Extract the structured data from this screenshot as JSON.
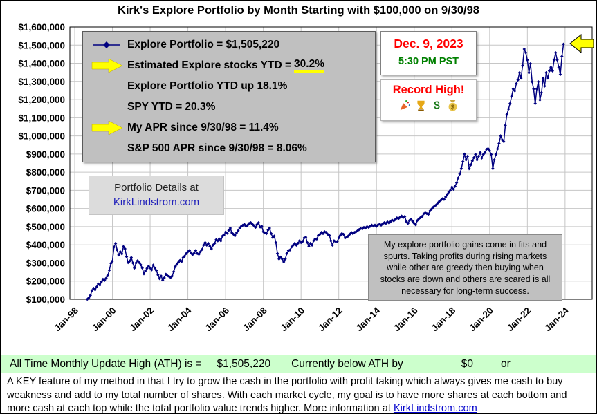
{
  "title": "Kirk's Explore Portfolio by Month Starting with $100,000 on 9/30/98",
  "legend": {
    "rows": [
      {
        "icon": "series-line-marker",
        "text": "Explore Portfolio  =  $1,505,220"
      },
      {
        "icon": "yellow-arrow-right",
        "prefix": "Estimated Explore stocks YTD = ",
        "highlight": "30.2%"
      },
      {
        "text": "Explore Portfolio YTD up 18.1%"
      },
      {
        "text": "SPY YTD =  20.3%"
      },
      {
        "icon": "yellow-arrow-right",
        "text": "My APR since 9/30/98 =  11.4%"
      },
      {
        "text": "S&P 500 APR since 9/30/98 =  8.06%"
      }
    ]
  },
  "date_box": {
    "date": "Dec. 9, 2023",
    "time": "5:30 PM PST"
  },
  "record_box": {
    "label": "Record High!",
    "icons": [
      "party-popper-icon",
      "trophy-icon",
      "dollar-icon",
      "money-bag-icon"
    ]
  },
  "details_box": {
    "line1": "Portfolio Details at",
    "line2": "KirkLindstrom.com"
  },
  "commentary": "My explore portfolio gains come in fits and spurts. Taking profits during rising markets while other are greedy then buying when stocks are down and others are scared is all necessary for long-term success.",
  "ath_bar": {
    "label": "All Time Monthly Update High (ATH) is =",
    "value": "$1,505,220",
    "below_label": "Currently below ATH by",
    "below_value": "$0",
    "suffix": "or"
  },
  "footer": {
    "text": "A KEY feature of my method in that I try to grow the cash in the portfolio with profit taking which always gives me cash to buy weakness and add to my total number of shares.  With each market cycle, my goal is to have more shares at each bottom and more cash at each top while the total portfolio value trends higher.   More information at ",
    "link": "KirkLindstrom.com"
  },
  "colors": {
    "series_line": "#000080",
    "date_red": "#ff0000",
    "time_green": "#008000",
    "record_red": "#ff0000",
    "ath_bar_green": "#ccffcc",
    "legend_gray": "#c0c0c0",
    "highlight_yellow": "#ffff00",
    "link_blue": "#0000cc"
  },
  "chart_data": {
    "type": "line",
    "title": "Kirk's Explore Portfolio by Month Starting with $100,000 on 9/30/98",
    "xlabel": "",
    "ylabel": "",
    "ylim": [
      100000,
      1600000
    ],
    "y_tick_step": 100000,
    "grid": true,
    "x_tick_labels": [
      "Jan-98",
      "Jan-00",
      "Jan-02",
      "Jan-04",
      "Jan-06",
      "Jan-08",
      "Jan-10",
      "Jan-12",
      "Jan-14",
      "Jan-16",
      "Jan-18",
      "Jan-20",
      "Jan-22",
      "Jan-24"
    ],
    "y_tick_labels": [
      "$1,600,000",
      "$1,500,000",
      "$1,400,000",
      "$1,300,000",
      "$1,200,000",
      "$1,100,000",
      "$1,000,000",
      "$900,000",
      "$800,000",
      "$700,000",
      "$600,000",
      "$500,000",
      "$400,000",
      "$300,000",
      "$200,000",
      "$100,000"
    ],
    "series": [
      {
        "name": "Explore Portfolio",
        "color": "#000080",
        "marker": "diamond",
        "start_month": "1998-09",
        "end_month": "2023-12",
        "units": "USD thousands (estimated monthly values read from chart)",
        "final_value_dollars": 1505220,
        "monthly_values_thousands": [
          100,
          108,
          122,
          148,
          160,
          152,
          168,
          184,
          178,
          196,
          210,
          204,
          216,
          230,
          260,
          298,
          310,
          388,
          408,
          372,
          344,
          362,
          350,
          390,
          378,
          334,
          302,
          310,
          330,
          300,
          272,
          300,
          312,
          302,
          290,
          272,
          240,
          256,
          270,
          282,
          272,
          262,
          288,
          272,
          258,
          234,
          214,
          228,
          206,
          218,
          238,
          230,
          226,
          220,
          228,
          252,
          280,
          292,
          304,
          314,
          308,
          330,
          338,
          352,
          362,
          368,
          356,
          346,
          354,
          368,
          352,
          348,
          362,
          374,
          398,
          412,
          398,
          408,
          392,
          378,
          398,
          408,
          428,
          422,
          432,
          422,
          448,
          454,
          470,
          464,
          480,
          492,
          466,
          458,
          450,
          466,
          478,
          492,
          502,
          508,
          512,
          502,
          508,
          518,
          522,
          514,
          506,
          496,
          512,
          522,
          498,
          502,
          472,
          466,
          462,
          482,
          492,
          462,
          440,
          448,
          412,
          352,
          322,
          332,
          322,
          306,
          322,
          352,
          368,
          372,
          388,
          398,
          408,
          398,
          408,
          422,
          412,
          418,
          438,
          442,
          412,
          392,
          408,
          398,
          422,
          432,
          432,
          452,
          458,
          468,
          462,
          472,
          468,
          458,
          452,
          422,
          398,
          422,
          418,
          418,
          438,
          452,
          462,
          458,
          438,
          442,
          448,
          458,
          468,
          462,
          468,
          472,
          478,
          484,
          490,
          488,
          496,
          492,
          500,
          496,
          502,
          508,
          504,
          508,
          502,
          510,
          514,
          508,
          516,
          522,
          518,
          526,
          520,
          528,
          536,
          532,
          540,
          548,
          544,
          552,
          558,
          550,
          556,
          528,
          518,
          534,
          540,
          530,
          518,
          510,
          534,
          544,
          550,
          556,
          570,
          576,
          572,
          568,
          586,
          596,
          606,
          614,
          620,
          630,
          640,
          646,
          654,
          650,
          664,
          678,
          690,
          700,
          718,
          706,
          722,
          742,
          768,
          790,
          820,
          858,
          900,
          868,
          888,
          820,
          840,
          862,
          880,
          898,
          868,
          888,
          908,
          878,
          898,
          908,
          926,
          930,
          918,
          898,
          820,
          868,
          898,
          928,
          958,
          1000,
          978,
          968,
          1058,
          1118,
          1148,
          1178,
          1218,
          1258,
          1248,
          1288,
          1308,
          1348,
          1318,
          1388,
          1478,
          1458,
          1418,
          1348,
          1398,
          1298,
          1258,
          1178,
          1258,
          1298,
          1198,
          1238,
          1318,
          1274,
          1348,
          1318,
          1358,
          1378,
          1358,
          1418,
          1458,
          1418,
          1378,
          1338,
          1438,
          1505.22
        ]
      }
    ],
    "legend_position": "top-left box",
    "annotations": [
      "Explore Portfolio  =  $1,505,220",
      "Estimated Explore stocks YTD =  30.2%",
      "Explore Portfolio YTD up 18.1%",
      "SPY YTD =  20.3%",
      "My APR since 9/30/98 =  11.4%",
      "S&P 500 APR since 9/30/98 =  8.06%",
      "Dec. 9, 2023 5:30 PM PST",
      "Record High!",
      "Portfolio Details at KirkLindstrom.com"
    ]
  }
}
